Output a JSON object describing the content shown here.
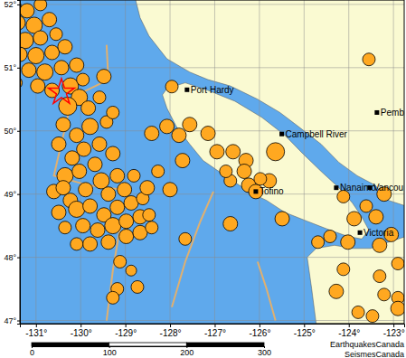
{
  "chart_data": {
    "type": "scatter",
    "grid": true,
    "color": "#ffa820",
    "marker": "circle",
    "xlim": [
      -131.36,
      -122.76
    ],
    "ylim": [
      46.95,
      52.07
    ],
    "xticks": [
      {
        "value": -131,
        "label": "-131°"
      },
      {
        "value": -130,
        "label": "-130°"
      },
      {
        "value": -129,
        "label": "-129°"
      },
      {
        "value": -128,
        "label": "-128°"
      },
      {
        "value": -127,
        "label": "-127°"
      },
      {
        "value": -126,
        "label": "-126°"
      },
      {
        "value": -125,
        "label": "-125°"
      },
      {
        "value": -124,
        "label": "-124°"
      },
      {
        "value": -123,
        "label": "-123°"
      }
    ],
    "yticks": [
      {
        "value": 47,
        "label": "47°"
      },
      {
        "value": 48,
        "label": "48°"
      },
      {
        "value": 49,
        "label": "49°"
      },
      {
        "value": 50,
        "label": "50°"
      },
      {
        "value": 51,
        "label": "51°"
      },
      {
        "value": 52,
        "label": "52°"
      }
    ],
    "x": [
      -131.51,
      -131.2,
      -130.9,
      -131.4,
      -131.04,
      -130.7,
      -131.57,
      -131.24,
      -130.9,
      -130.55,
      -131.36,
      -131.0,
      -130.64,
      -130.35,
      -131.16,
      -130.8,
      -130.43,
      -130.09,
      -131.45,
      -130.96,
      -130.64,
      -130.23,
      -129.95,
      -130.03,
      -130.29,
      -129.83,
      -129.48,
      -129.58,
      -130.39,
      -130.09,
      -129.79,
      -129.42,
      -129.93,
      -129.58,
      -130.19,
      -129.28,
      -130.49,
      -130.35,
      -130.6,
      -130.03,
      -129.68,
      -129.28,
      -129.18,
      -129.54,
      -129.89,
      -130.23,
      -130.49,
      -129.38,
      -129.02,
      -128.81,
      -130.09,
      -129.79,
      -129.48,
      -129.18,
      -128.87,
      -128.61,
      -129.95,
      -129.62,
      -129.28,
      -128.98,
      -128.67,
      -128.47,
      -130.35,
      -129.38,
      -128.98,
      -128.67,
      -128.41,
      -129.79,
      -130.09,
      -128.51,
      -128.27,
      -129.12,
      -129.18,
      -129.28,
      -128.73,
      -128.87,
      -128.41,
      -128.07,
      -127.8,
      -127.56,
      -127.15,
      -127.72,
      -128.0,
      -127.66,
      -126.95,
      -126.59,
      -126.3,
      -126.34,
      -126.65,
      -126.24,
      -126.08,
      -126.75,
      -126.65,
      -127.96,
      -125.49,
      -125.64,
      -125.78,
      -125.98,
      -124.12,
      -123.88,
      -123.61,
      -123.39,
      -123.21,
      -123.05,
      -124.02,
      -124.42,
      -124.69,
      -123.31,
      -124.12,
      -124.28,
      -123.21,
      -122.9,
      -123.55,
      -123.79,
      -123.47,
      -122.9,
      -123.31,
      -122.9,
      -130.39
    ],
    "values": [
      51.96,
      51.9,
      52.0,
      51.71,
      51.67,
      51.76,
      51.5,
      51.43,
      51.47,
      51.53,
      51.21,
      51.19,
      51.24,
      51.33,
      50.96,
      50.93,
      51.0,
      51.04,
      50.76,
      50.71,
      50.64,
      50.71,
      50.81,
      50.53,
      50.39,
      50.36,
      50.86,
      50.53,
      50.1,
      49.93,
      50.07,
      50.14,
      49.71,
      49.79,
      49.57,
      50.29,
      49.79,
      49.29,
      49.04,
      49.36,
      49.47,
      49.64,
      49.29,
      49.21,
      49.07,
      48.9,
      48.71,
      49.0,
      49.07,
      49.29,
      48.76,
      48.81,
      48.67,
      48.79,
      48.86,
      48.93,
      48.5,
      48.43,
      48.5,
      48.57,
      48.64,
      48.67,
      48.47,
      48.24,
      48.33,
      48.39,
      48.47,
      48.21,
      48.21,
      49.1,
      49.36,
      47.93,
      47.5,
      47.36,
      47.53,
      47.79,
      49.96,
      50.07,
      49.93,
      50.1,
      49.96,
      49.53,
      49.07,
      48.29,
      49.67,
      49.67,
      49.53,
      49.36,
      49.21,
      49.14,
      49.04,
      49.36,
      48.53,
      50.7,
      48.61,
      49.67,
      49.21,
      49.24,
      48.96,
      48.61,
      48.81,
      48.64,
      49.0,
      48.36,
      48.24,
      48.33,
      48.24,
      48.19,
      47.81,
      47.46,
      47.41,
      47.36,
      51.13,
      47.13,
      47.07,
      47.19,
      47.7,
      47.9,
      49.1
    ],
    "sizes": [
      4.5,
      4,
      3.5,
      4,
      4.5,
      4,
      4,
      4.5,
      4,
      3.5,
      4,
      4.5,
      4,
      4,
      4,
      4.5,
      4,
      4,
      3.5,
      4,
      4,
      4.5,
      3.5,
      4.5,
      5,
      4,
      4,
      3.5,
      4,
      4,
      4.5,
      3.5,
      4,
      4,
      4,
      3.5,
      4,
      4.5,
      4,
      4,
      4,
      4,
      4,
      4.5,
      4,
      4,
      4,
      4,
      4,
      3.5,
      4.5,
      4,
      4,
      4,
      4,
      3.5,
      4,
      4,
      4.5,
      4,
      4,
      3.5,
      3.5,
      4,
      4,
      4,
      3.5,
      4,
      3.5,
      4,
      3.5,
      3.5,
      3.5,
      3.5,
      3.5,
      3,
      4,
      4,
      4,
      4,
      4,
      4,
      4,
      3.5,
      4,
      4,
      4,
      4,
      3.5,
      4,
      4,
      3.5,
      4,
      3.5,
      4,
      5,
      4,
      3.5,
      3.5,
      4,
      3.5,
      4,
      4,
      4,
      4,
      3.5,
      3.5,
      4,
      3.5,
      4,
      3.5,
      3.5,
      3.5,
      3.5,
      3.5,
      4,
      3.5,
      3.5,
      4
    ],
    "epicenter": {
      "x": -130.43,
      "y": 50.61,
      "color": "#ff0000",
      "marker": "star"
    },
    "land": [
      [
        [
          -128.77,
          52.07
        ],
        [
          -122.72,
          52.07
        ],
        [
          -122.72,
          48.81
        ],
        [
          -123.11,
          48.9
        ],
        [
          -123.41,
          49.14
        ],
        [
          -123.81,
          49.29
        ],
        [
          -124.22,
          49.5
        ],
        [
          -124.62,
          49.79
        ],
        [
          -125.13,
          50.07
        ],
        [
          -125.54,
          50.29
        ],
        [
          -126.04,
          50.5
        ],
        [
          -126.65,
          50.71
        ],
        [
          -127.15,
          50.81
        ],
        [
          -127.56,
          50.93
        ],
        [
          -128.07,
          51.14
        ],
        [
          -128.47,
          51.5
        ],
        [
          -128.67,
          51.79
        ]
      ],
      [
        [
          -128.07,
          50.67
        ],
        [
          -127.66,
          50.76
        ],
        [
          -127.15,
          50.64
        ],
        [
          -126.55,
          50.47
        ],
        [
          -125.94,
          50.21
        ],
        [
          -125.43,
          49.93
        ],
        [
          -125.03,
          49.64
        ],
        [
          -124.62,
          49.36
        ],
        [
          -124.22,
          49.1
        ],
        [
          -123.92,
          48.86
        ],
        [
          -123.71,
          48.64
        ],
        [
          -123.55,
          48.43
        ],
        [
          -123.71,
          48.29
        ],
        [
          -124.02,
          48.33
        ],
        [
          -124.42,
          48.43
        ],
        [
          -124.93,
          48.57
        ],
        [
          -125.43,
          48.71
        ],
        [
          -125.84,
          48.9
        ],
        [
          -126.14,
          49.0
        ],
        [
          -126.45,
          49.14
        ],
        [
          -126.85,
          49.33
        ],
        [
          -127.26,
          49.53
        ],
        [
          -127.56,
          49.79
        ],
        [
          -127.86,
          50.07
        ],
        [
          -128.07,
          50.36
        ],
        [
          -128.17,
          50.57
        ]
      ],
      [
        [
          -122.72,
          48.33
        ],
        [
          -123.11,
          48.24
        ],
        [
          -123.51,
          48.14
        ],
        [
          -123.92,
          48.14
        ],
        [
          -124.32,
          48.19
        ],
        [
          -124.73,
          48.14
        ],
        [
          -124.93,
          48.0
        ],
        [
          -124.83,
          47.5
        ],
        [
          -124.73,
          46.95
        ],
        [
          -122.72,
          46.95
        ]
      ]
    ],
    "plate_boundaries": [
      [
        [
          -129.42,
          51.36
        ],
        [
          -129.38,
          50.81
        ],
        [
          -130.19,
          50.53
        ],
        [
          -130.6,
          49.29
        ],
        [
          -129.83,
          49.14
        ],
        [
          -129.08,
          49.07
        ]
      ],
      [
        [
          -127.03,
          49.04
        ],
        [
          -127.32,
          48.57
        ],
        [
          -127.66,
          47.93
        ],
        [
          -127.96,
          47.21
        ]
      ],
      [
        [
          -126.04,
          47.93
        ],
        [
          -125.84,
          47.5
        ],
        [
          -125.64,
          47.0
        ]
      ],
      [
        [
          -129.08,
          48.64
        ],
        [
          -129.28,
          47.79
        ],
        [
          -129.42,
          47.0
        ]
      ]
    ],
    "cities": [
      {
        "name": "Port Hardy",
        "x": -127.62,
        "y": 50.65
      },
      {
        "name": "Campbell River",
        "x": -125.5,
        "y": 49.95
      },
      {
        "name": "Tofino",
        "x": -126.08,
        "y": 49.04
      },
      {
        "name": "Nanaimo",
        "x": -124.28,
        "y": 49.1
      },
      {
        "name": "Vancou",
        "x": -123.53,
        "y": 49.1
      },
      {
        "name": "Victoria",
        "x": -123.75,
        "y": 48.39
      },
      {
        "name": "Pemb",
        "x": -123.37,
        "y": 50.29
      }
    ],
    "scale_bar": {
      "xlim": [
        0,
        300
      ],
      "xticks": [
        0,
        100,
        200,
        300
      ]
    },
    "credits": [
      "EarthquakesCanada",
      "SeismesCanada"
    ]
  }
}
